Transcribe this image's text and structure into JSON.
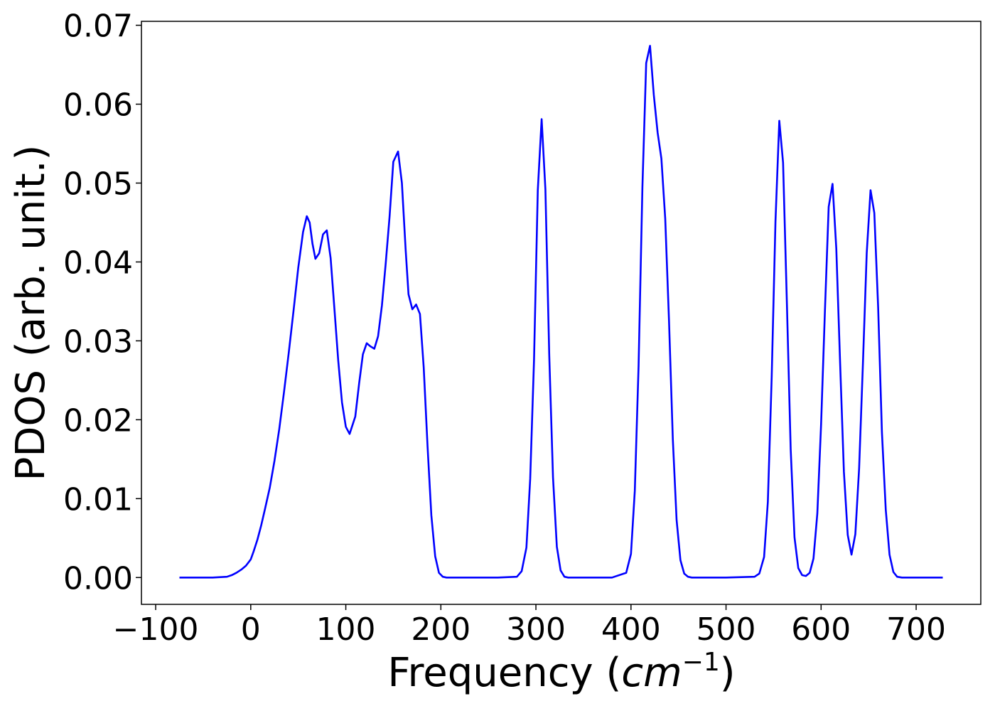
{
  "chart_data": {
    "type": "line",
    "title": "",
    "xlabel": "Frequency (",
    "xlabel_math": "cm",
    "xlabel_sup": "−1",
    "xlabel_close": ")",
    "ylabel": "PDOS (arb. unit.)",
    "xlim": [
      -115,
      768
    ],
    "ylim": [
      -0.0034,
      0.0705
    ],
    "xticks": [
      -100,
      0,
      100,
      200,
      300,
      400,
      500,
      600,
      700
    ],
    "xtick_labels": [
      "−100",
      "0",
      "100",
      "200",
      "300",
      "400",
      "500",
      "600",
      "700"
    ],
    "yticks": [
      0.0,
      0.01,
      0.02,
      0.03,
      0.04,
      0.05,
      0.06,
      0.07
    ],
    "ytick_labels": [
      "0.00",
      "0.01",
      "0.02",
      "0.03",
      "0.04",
      "0.05",
      "0.06",
      "0.07"
    ],
    "grid": false,
    "legend": "none",
    "series": [
      {
        "color": "#0000ff",
        "x": [
          -75,
          -60,
          -40,
          -25,
          -20,
          -15,
          -10,
          -5,
          0,
          3,
          7,
          11,
          15,
          20,
          25,
          30,
          35,
          40,
          45,
          50,
          55,
          59,
          62,
          65,
          68,
          72,
          76,
          80,
          84,
          88,
          92,
          96,
          100,
          104,
          110,
          114,
          118,
          122,
          126,
          130,
          134,
          138,
          142,
          146,
          150,
          155,
          159,
          163,
          166,
          170,
          174,
          178,
          182,
          186,
          190,
          194,
          198,
          202,
          206,
          210,
          220,
          240,
          260,
          280,
          285,
          290,
          294,
          298,
          302,
          306,
          310,
          314,
          318,
          322,
          326,
          330,
          334,
          340,
          360,
          380,
          395,
          400,
          404,
          408,
          412,
          416,
          420,
          424,
          428,
          432,
          436,
          440,
          444,
          448,
          452,
          456,
          460,
          464,
          470,
          500,
          530,
          535,
          540,
          544,
          548,
          552,
          556,
          560,
          564,
          568,
          572,
          576,
          580,
          584,
          588,
          592,
          596,
          600,
          604,
          608,
          612,
          616,
          620,
          624,
          628,
          632,
          636,
          640,
          644,
          648,
          652,
          656,
          660,
          664,
          668,
          672,
          676,
          680,
          685,
          700,
          728
        ],
        "y": [
          0,
          0,
          0,
          0.0001,
          0.0003,
          0.0006,
          0.001,
          0.0015,
          0.0023,
          0.0033,
          0.0048,
          0.0066,
          0.0087,
          0.0114,
          0.0148,
          0.0188,
          0.0235,
          0.0285,
          0.0338,
          0.0393,
          0.0438,
          0.0458,
          0.045,
          0.0423,
          0.0404,
          0.0411,
          0.0435,
          0.044,
          0.0405,
          0.0341,
          0.0275,
          0.0222,
          0.0191,
          0.0182,
          0.0204,
          0.0246,
          0.0283,
          0.0297,
          0.0293,
          0.029,
          0.0306,
          0.0345,
          0.0398,
          0.0457,
          0.0527,
          0.054,
          0.05,
          0.0415,
          0.0359,
          0.034,
          0.0346,
          0.0334,
          0.0266,
          0.0166,
          0.0079,
          0.0027,
          0.0006,
          0.0001,
          0,
          0,
          0,
          0,
          0,
          0.0001,
          0.0008,
          0.0038,
          0.0125,
          0.0276,
          0.0491,
          0.0581,
          0.0492,
          0.0282,
          0.0127,
          0.0039,
          0.0009,
          0.0001,
          0,
          0,
          0,
          0,
          0.0006,
          0.003,
          0.011,
          0.0268,
          0.0495,
          0.0652,
          0.0674,
          0.0612,
          0.0564,
          0.0531,
          0.0455,
          0.0326,
          0.0175,
          0.0073,
          0.0022,
          0.0005,
          0.0001,
          0,
          0,
          0,
          0.0001,
          0.0005,
          0.0026,
          0.0096,
          0.0254,
          0.0451,
          0.0579,
          0.0526,
          0.0347,
          0.0163,
          0.0051,
          0.0012,
          0.0003,
          0.0002,
          0.0006,
          0.0024,
          0.0081,
          0.0194,
          0.0338,
          0.047,
          0.0499,
          0.0417,
          0.0271,
          0.0134,
          0.0054,
          0.0029,
          0.0055,
          0.0138,
          0.0272,
          0.0411,
          0.0491,
          0.0462,
          0.0342,
          0.0184,
          0.0086,
          0.0029,
          0.0007,
          0.0001,
          0,
          0,
          0
        ]
      }
    ]
  }
}
